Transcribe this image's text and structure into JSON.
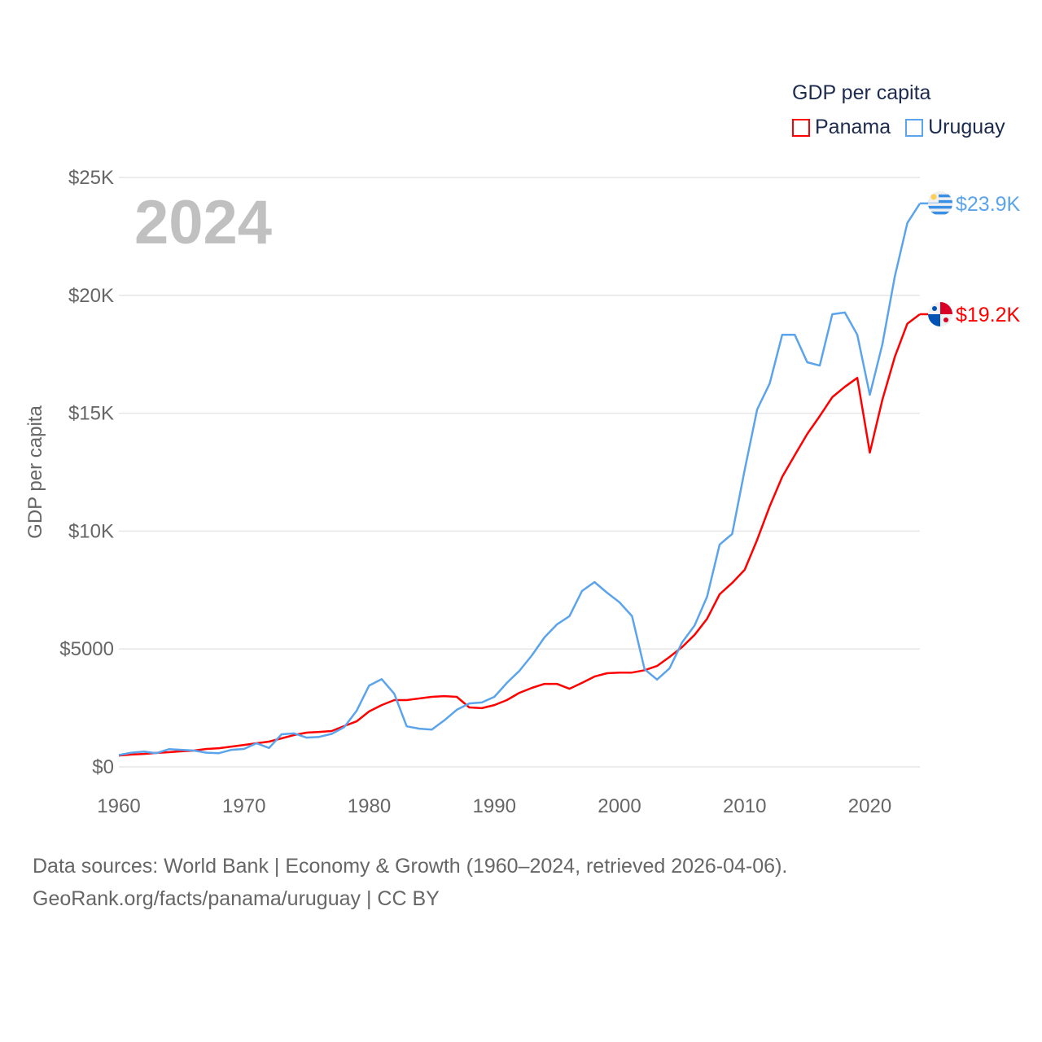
{
  "chart_data": {
    "type": "line",
    "title": "",
    "year_label": "2024",
    "ylabel": "GDP per capita",
    "xlabel": "",
    "xlim": [
      1960,
      2024
    ],
    "ylim": [
      0,
      25000
    ],
    "x_ticks": [
      1960,
      1970,
      1980,
      1990,
      2000,
      2010,
      2020
    ],
    "y_ticks": [
      {
        "value": 0,
        "label": "$0"
      },
      {
        "value": 5000,
        "label": "$5000"
      },
      {
        "value": 10000,
        "label": "$10K"
      },
      {
        "value": 15000,
        "label": "$15K"
      },
      {
        "value": 20000,
        "label": "$20K"
      },
      {
        "value": 25000,
        "label": "$25K"
      }
    ],
    "grid": true,
    "legend": {
      "title": "GDP per capita",
      "placement": "top-right"
    },
    "x": [
      1960,
      1961,
      1962,
      1963,
      1964,
      1965,
      1966,
      1967,
      1968,
      1969,
      1970,
      1971,
      1972,
      1973,
      1974,
      1975,
      1976,
      1977,
      1978,
      1979,
      1980,
      1981,
      1982,
      1983,
      1984,
      1985,
      1986,
      1987,
      1988,
      1989,
      1990,
      1991,
      1992,
      1993,
      1994,
      1995,
      1996,
      1997,
      1998,
      1999,
      2000,
      2001,
      2002,
      2003,
      2004,
      2005,
      2006,
      2007,
      2008,
      2009,
      2010,
      2011,
      2012,
      2013,
      2014,
      2015,
      2016,
      2017,
      2018,
      2019,
      2020,
      2021,
      2022,
      2023,
      2024
    ],
    "series": [
      {
        "name": "Panama",
        "color": "#ff0000",
        "end_label": "$19.2K",
        "flag": "panama-flag",
        "values": [
          480,
          520,
          550,
          590,
          620,
          660,
          690,
          760,
          790,
          860,
          930,
          1000,
          1070,
          1210,
          1350,
          1450,
          1480,
          1520,
          1730,
          1930,
          2350,
          2620,
          2830,
          2830,
          2900,
          2970,
          3000,
          2970,
          2520,
          2490,
          2620,
          2830,
          3140,
          3350,
          3520,
          3520,
          3310,
          3560,
          3830,
          3970,
          4000,
          4000,
          4100,
          4280,
          4660,
          5080,
          5600,
          6280,
          7320,
          7800,
          8360,
          9630,
          11050,
          12300,
          13220,
          14120,
          14880,
          15680,
          16120,
          16500,
          13330,
          15570,
          17400,
          18800,
          19200
        ]
      },
      {
        "name": "Uruguay",
        "color": "#5ba4ec",
        "end_label": "$23.9K",
        "flag": "uruguay-flag",
        "values": [
          500,
          600,
          650,
          580,
          750,
          720,
          690,
          600,
          580,
          720,
          760,
          1000,
          800,
          1380,
          1420,
          1240,
          1270,
          1400,
          1680,
          2380,
          3450,
          3720,
          3100,
          1720,
          1620,
          1580,
          1970,
          2420,
          2690,
          2730,
          2970,
          3560,
          4070,
          4730,
          5490,
          6040,
          6390,
          7460,
          7840,
          7390,
          6980,
          6390,
          4140,
          3700,
          4180,
          5280,
          6000,
          7220,
          9430,
          9880,
          12600,
          15160,
          16260,
          18330,
          18330,
          17160,
          17020,
          19200,
          19270,
          18330,
          15780,
          17920,
          20820,
          23070,
          23900
        ]
      }
    ]
  },
  "footer": {
    "line1": "Data sources: World Bank | Economy & Growth (1960–2024, retrieved 2026-04-06).",
    "line2": "GeoRank.org/facts/panama/uruguay | CC BY"
  }
}
